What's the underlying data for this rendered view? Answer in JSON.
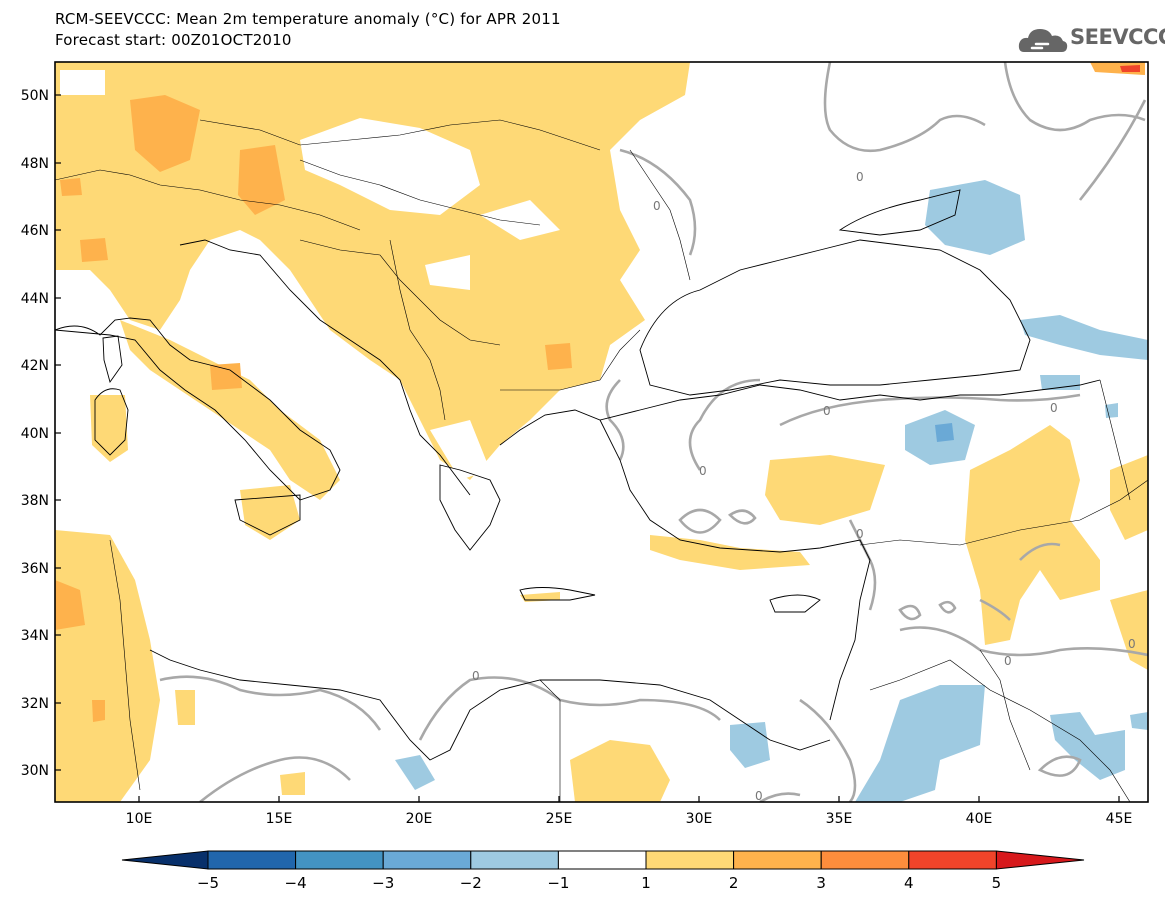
{
  "header": {
    "title_line1": "RCM-SEEVCCC: Mean 2m temperature anomaly (°C) for APR 2011",
    "title_line2": "Forecast start: 00Z01OCT2010"
  },
  "logo": {
    "text": "SEEVCCC",
    "icon": "cloud-icon",
    "color": "#666666"
  },
  "map": {
    "lat_labels": [
      "50N",
      "48N",
      "46N",
      "44N",
      "42N",
      "40N",
      "38N",
      "36N",
      "34N",
      "32N",
      "30N"
    ],
    "lon_labels": [
      "10E",
      "15E",
      "20E",
      "25E",
      "30E",
      "35E",
      "40E",
      "45E"
    ],
    "contour_labels": [
      "0",
      "0",
      "0",
      "0",
      "0",
      "0",
      "0",
      "0",
      "0",
      "0"
    ]
  },
  "colorbar": {
    "labels": [
      "−5",
      "−4",
      "−3",
      "−2",
      "−1",
      "1",
      "2",
      "3",
      "4",
      "5"
    ],
    "colors": [
      "#08306b",
      "#2166ac",
      "#4393c3",
      "#6aa9d6",
      "#9ecae1",
      "#ffffff",
      "#fed976",
      "#feb24c",
      "#fd8d3c",
      "#f0442a",
      "#d7191c"
    ]
  }
}
